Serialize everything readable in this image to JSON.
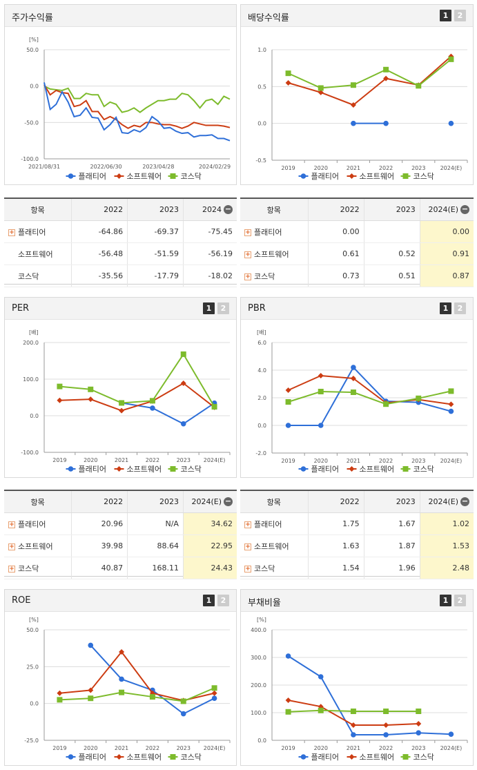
{
  "colors": {
    "s1": "#2e6fd8",
    "s2": "#cc3c12",
    "s3": "#7dbb2c",
    "grid": "#dcdcdc",
    "axis": "#999999"
  },
  "legend": [
    "플래티어",
    "소프트웨어",
    "코스닥"
  ],
  "panels": {
    "price": {
      "title": "주가수익률",
      "unit": "[%]"
    },
    "dividend": {
      "title": "배당수익률",
      "btn1": "1",
      "btn2": "2"
    },
    "per": {
      "title": "PER",
      "unit": "[배]",
      "btn1": "1",
      "btn2": "2"
    },
    "pbr": {
      "title": "PBR",
      "unit": "[배]",
      "btn1": "1",
      "btn2": "2"
    },
    "roe": {
      "title": "ROE",
      "unit": "[%]",
      "btn1": "1",
      "btn2": "2"
    },
    "debt": {
      "title": "부채비율",
      "unit": "[%]",
      "btn1": "1",
      "btn2": "2"
    }
  },
  "tables": {
    "price": {
      "headers": [
        "항목",
        "2022",
        "2023",
        "2024"
      ],
      "rows": [
        [
          "플래티어",
          "-64.86",
          "-69.37",
          "-75.45"
        ],
        [
          "소프트웨어",
          "-56.48",
          "-51.59",
          "-56.19"
        ],
        [
          "코스닥",
          "-35.56",
          "-17.79",
          "-18.02"
        ]
      ]
    },
    "dividend": {
      "headers": [
        "항목",
        "2022",
        "2023",
        "2024(E)"
      ],
      "rows": [
        [
          "플래티어",
          "0.00",
          "",
          "0.00"
        ],
        [
          "소프트웨어",
          "0.61",
          "0.52",
          "0.91"
        ],
        [
          "코스닥",
          "0.73",
          "0.51",
          "0.87"
        ]
      ]
    },
    "per": {
      "headers": [
        "항목",
        "2022",
        "2023",
        "2024(E)"
      ],
      "rows": [
        [
          "플래티어",
          "20.96",
          "N/A",
          "34.62"
        ],
        [
          "소프트웨어",
          "39.98",
          "88.64",
          "22.95"
        ],
        [
          "코스닥",
          "40.87",
          "168.11",
          "24.43"
        ]
      ]
    },
    "pbr": {
      "headers": [
        "항목",
        "2022",
        "2023",
        "2024(E)"
      ],
      "rows": [
        [
          "플래티어",
          "1.75",
          "1.67",
          "1.02"
        ],
        [
          "소프트웨어",
          "1.63",
          "1.87",
          "1.53"
        ],
        [
          "코스닥",
          "1.54",
          "1.96",
          "2.48"
        ]
      ]
    }
  },
  "chart_data": [
    {
      "id": "price",
      "type": "line",
      "ylim": [
        -100,
        50
      ],
      "yticks": [
        "50.0",
        "0.0",
        "-50.0",
        "-100.0"
      ],
      "xticks": [
        "2021/08/31",
        "2022/06/30",
        "2023/04/28",
        "2024/02/29"
      ],
      "series": [
        {
          "name": "플래티어",
          "values": [
            5,
            -32,
            -25,
            -8,
            -22,
            -42,
            -40,
            -30,
            -43,
            -44,
            -60,
            -53,
            -43,
            -64,
            -65,
            -60,
            -63,
            -57,
            -42,
            -48,
            -58,
            -57,
            -62,
            -65,
            -64,
            -70,
            -68,
            -68,
            -67,
            -72,
            -72,
            -75
          ]
        },
        {
          "name": "소프트웨어",
          "values": [
            2,
            -12,
            -6,
            -9,
            -10,
            -28,
            -26,
            -20,
            -35,
            -35,
            -46,
            -42,
            -46,
            -53,
            -58,
            -54,
            -56,
            -50,
            -50,
            -52,
            -53,
            -53,
            -55,
            -58,
            -55,
            -50,
            -52,
            -54,
            -54,
            -54,
            -55,
            -57
          ]
        },
        {
          "name": "코스닥",
          "values": [
            0,
            -4,
            -5,
            -6,
            -3,
            -17,
            -17,
            -10,
            -12,
            -12,
            -28,
            -22,
            -25,
            -36,
            -34,
            -30,
            -36,
            -30,
            -25,
            -20,
            -20,
            -18,
            -18,
            -10,
            -12,
            -20,
            -30,
            -20,
            -18,
            -25,
            -14,
            -18
          ]
        }
      ]
    },
    {
      "id": "dividend",
      "type": "line",
      "categories": [
        "2019",
        "2020",
        "2021",
        "2022",
        "2023",
        "2024(E)"
      ],
      "ylim": [
        -0.5,
        1.0
      ],
      "yticks": [
        "1.0",
        "0.5",
        "0.0",
        "-0.5"
      ],
      "series": [
        {
          "name": "플래티어",
          "values": [
            null,
            null,
            0.0,
            0.0,
            null,
            0.0
          ]
        },
        {
          "name": "소프트웨어",
          "values": [
            0.55,
            0.42,
            0.25,
            0.61,
            0.52,
            0.91
          ]
        },
        {
          "name": "코스닥",
          "values": [
            0.68,
            0.48,
            0.52,
            0.73,
            0.51,
            0.87
          ]
        }
      ]
    },
    {
      "id": "per",
      "type": "line",
      "categories": [
        "2019",
        "2020",
        "2021",
        "2022",
        "2023",
        "2024(E)"
      ],
      "ylim": [
        -100,
        200
      ],
      "yticks": [
        "200.0",
        "100.0",
        "0.0",
        "-100.0"
      ],
      "series": [
        {
          "name": "플래티어",
          "values": [
            null,
            null,
            35,
            20.96,
            -22,
            34.62
          ]
        },
        {
          "name": "소프트웨어",
          "values": [
            42,
            45,
            14,
            39.98,
            88.64,
            22.95
          ]
        },
        {
          "name": "코스닥",
          "values": [
            80,
            72,
            35,
            40.87,
            168.11,
            24.43
          ]
        }
      ]
    },
    {
      "id": "pbr",
      "type": "line",
      "categories": [
        "2019",
        "2020",
        "2021",
        "2022",
        "2023",
        "2024(E)"
      ],
      "ylim": [
        -2,
        6
      ],
      "yticks": [
        "6.0",
        "4.0",
        "2.0",
        "0.0",
        "-2.0"
      ],
      "series": [
        {
          "name": "플래티어",
          "values": [
            0.0,
            0.0,
            4.2,
            1.75,
            1.67,
            1.02
          ]
        },
        {
          "name": "소프트웨어",
          "values": [
            2.55,
            3.6,
            3.4,
            1.63,
            1.87,
            1.53
          ]
        },
        {
          "name": "코스닥",
          "values": [
            1.7,
            2.45,
            2.4,
            1.54,
            1.96,
            2.48
          ]
        }
      ]
    },
    {
      "id": "roe",
      "type": "line",
      "categories": [
        "2019",
        "2020",
        "2021",
        "2022",
        "2023",
        "2024(E)"
      ],
      "ylim": [
        -25,
        50
      ],
      "yticks": [
        "50.0",
        "25.0",
        "0.0",
        "-25.0"
      ],
      "series": [
        {
          "name": "플래티어",
          "values": [
            null,
            39.5,
            16.5,
            9,
            -7,
            3.5
          ]
        },
        {
          "name": "소프트웨어",
          "values": [
            7,
            9,
            35,
            7,
            2,
            7
          ]
        },
        {
          "name": "코스닥",
          "values": [
            2.5,
            3.5,
            7.5,
            4.5,
            1.5,
            10.5
          ]
        }
      ]
    },
    {
      "id": "debt",
      "type": "line",
      "categories": [
        "2019",
        "2020",
        "2021",
        "2022",
        "2023",
        "2024(E)"
      ],
      "ylim": [
        0,
        400
      ],
      "yticks": [
        "400.0",
        "300.0",
        "200.0",
        "100.0",
        "0.0"
      ],
      "series": [
        {
          "name": "플래티어",
          "values": [
            305,
            230,
            20,
            20,
            27,
            22
          ]
        },
        {
          "name": "소프트웨어",
          "values": [
            145,
            122,
            55,
            55,
            60,
            null
          ]
        },
        {
          "name": "코스닥",
          "values": [
            103,
            108,
            105,
            105,
            105,
            null
          ]
        }
      ]
    }
  ]
}
